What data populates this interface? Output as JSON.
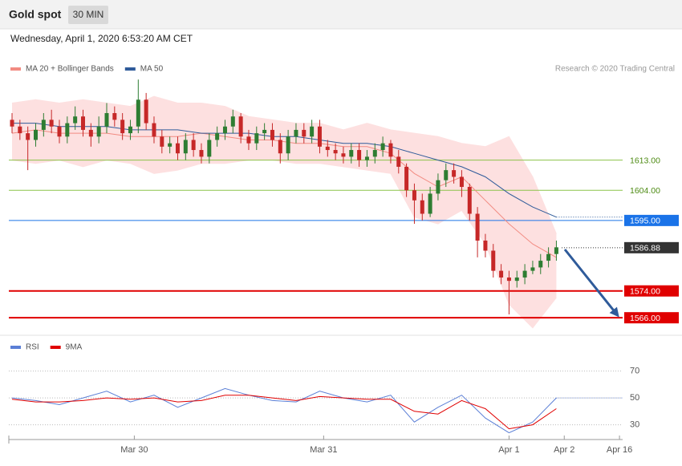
{
  "header": {
    "title": "Gold spot",
    "timeframe": "30 MIN",
    "timestamp": "Wednesday, April 1, 2020 6:53:20 AM CET"
  },
  "chart_data": [
    {
      "type": "candlestick",
      "credit": "Research © 2020 Trading Central",
      "xlim": [
        0,
        155
      ],
      "ylim": [
        1561.5,
        1638
      ],
      "up_color": "#2e7d32",
      "down_color": "#c62828",
      "candles": {
        "x": [
          0,
          2,
          4,
          6,
          8,
          10,
          12,
          14,
          16,
          18,
          20,
          22,
          24,
          26,
          28,
          30,
          32,
          34,
          36,
          38,
          40,
          42,
          44,
          46,
          48,
          50,
          52,
          54,
          56,
          58,
          60,
          62,
          64,
          66,
          68,
          70,
          72,
          74,
          76,
          78,
          80,
          82,
          84,
          86,
          88,
          90,
          92,
          94,
          96,
          98,
          100,
          102,
          104,
          106,
          108,
          110,
          112,
          114,
          116,
          118,
          120,
          122,
          124,
          126,
          128,
          130,
          132,
          134,
          136,
          138
        ],
        "open": [
          1625,
          1623,
          1621,
          1619,
          1622,
          1625,
          1623,
          1620,
          1624,
          1626,
          1622,
          1620,
          1623,
          1627,
          1625,
          1621,
          1623,
          1631,
          1624,
          1620,
          1617,
          1618,
          1615,
          1619,
          1616,
          1614,
          1619,
          1621,
          1623,
          1626,
          1620,
          1618,
          1621,
          1622,
          1619,
          1615,
          1620,
          1622,
          1620,
          1623,
          1617,
          1616,
          1615,
          1614,
          1616,
          1613,
          1614,
          1616,
          1618,
          1614,
          1611,
          1604,
          1601,
          1597,
          1603,
          1607,
          1610,
          1608,
          1605,
          1597,
          1589,
          1586,
          1580,
          1578,
          1577,
          1578,
          1580,
          1581,
          1583,
          1585
        ],
        "high": [
          1627,
          1625,
          1623,
          1624,
          1627,
          1628,
          1625,
          1626,
          1629,
          1628,
          1624,
          1626,
          1630,
          1629,
          1627,
          1625,
          1637,
          1633,
          1626,
          1622,
          1620,
          1620,
          1621,
          1621,
          1618,
          1621,
          1623,
          1625,
          1628,
          1627,
          1622,
          1623,
          1624,
          1624,
          1621,
          1622,
          1624,
          1624,
          1625,
          1625,
          1619,
          1618,
          1617,
          1618,
          1618,
          1616,
          1618,
          1620,
          1619,
          1616,
          1612,
          1606,
          1603,
          1605,
          1609,
          1612,
          1612,
          1610,
          1606,
          1599,
          1591,
          1588,
          1582,
          1580,
          1580,
          1582,
          1583,
          1585,
          1587,
          1589
        ],
        "low": [
          1621,
          1619,
          1610,
          1617,
          1620,
          1621,
          1618,
          1618,
          1622,
          1620,
          1617,
          1618,
          1621,
          1623,
          1619,
          1619,
          1621,
          1622,
          1618,
          1615,
          1615,
          1613,
          1613,
          1614,
          1612,
          1612,
          1617,
          1619,
          1621,
          1618,
          1616,
          1616,
          1619,
          1617,
          1612,
          1613,
          1618,
          1618,
          1618,
          1615,
          1614,
          1613,
          1612,
          1612,
          1611,
          1611,
          1612,
          1614,
          1612,
          1609,
          1602,
          1594,
          1595,
          1596,
          1601,
          1605,
          1606,
          1602,
          1595,
          1584,
          1584,
          1578,
          1576,
          1567,
          1575,
          1576,
          1579,
          1579,
          1581,
          1583
        ],
        "close": [
          1623,
          1621,
          1619,
          1622,
          1625,
          1623,
          1620,
          1624,
          1626,
          1622,
          1620,
          1623,
          1627,
          1625,
          1621,
          1623,
          1631,
          1624,
          1620,
          1617,
          1618,
          1615,
          1619,
          1616,
          1614,
          1619,
          1621,
          1623,
          1626,
          1620,
          1618,
          1621,
          1622,
          1619,
          1615,
          1620,
          1622,
          1620,
          1623,
          1617,
          1616,
          1615,
          1614,
          1616,
          1613,
          1614,
          1616,
          1618,
          1614,
          1611,
          1604,
          1601,
          1597,
          1603,
          1607,
          1610,
          1608,
          1605,
          1597,
          1589,
          1586,
          1580,
          1578,
          1577,
          1578,
          1580,
          1581,
          1583,
          1585,
          1587
        ]
      },
      "x": [
        0,
        6,
        12,
        18,
        24,
        30,
        36,
        42,
        48,
        54,
        60,
        66,
        72,
        78,
        84,
        90,
        96,
        102,
        108,
        114,
        120,
        126,
        132,
        138
      ],
      "series": [
        {
          "name": "MA 20 + Bollinger Bands",
          "color": "#f28b82",
          "band_color": "#fde0e0",
          "values": [
            1621,
            1622,
            1621,
            1621,
            1621,
            1620,
            1620,
            1620,
            1621,
            1620,
            1619,
            1619,
            1618,
            1618,
            1617,
            1617,
            1615,
            1609,
            1605,
            1608,
            1601,
            1594,
            1588,
            1584
          ],
          "upper": [
            1630,
            1631,
            1630,
            1631,
            1630,
            1629,
            1632,
            1630,
            1630,
            1629,
            1626,
            1625,
            1624,
            1624,
            1622,
            1624,
            1622,
            1621,
            1620,
            1618,
            1617,
            1620,
            1608,
            1591
          ],
          "lower": [
            1613,
            1612,
            1613,
            1611,
            1613,
            1612,
            1609,
            1610,
            1612,
            1612,
            1613,
            1613,
            1612,
            1612,
            1611,
            1610,
            1609,
            1596,
            1594,
            1598,
            1588,
            1570,
            1563,
            1572
          ]
        },
        {
          "name": "MA 50",
          "color": "#2f5b9a",
          "values": [
            1624,
            1624,
            1623,
            1623,
            1623,
            1622,
            1622,
            1622,
            1621,
            1621,
            1621,
            1620,
            1620,
            1619,
            1618,
            1618,
            1617,
            1615,
            1613,
            1611,
            1608,
            1603,
            1599,
            1596
          ]
        }
      ],
      "levels": [
        {
          "value": 1613,
          "label": "1613.00",
          "color": "#8bc34a",
          "text_color": "#4c8a12",
          "boxed": false,
          "width": 1
        },
        {
          "value": 1604,
          "label": "1604.00",
          "color": "#8bc34a",
          "text_color": "#4c8a12",
          "boxed": false,
          "width": 1
        },
        {
          "value": 1595,
          "label": "1595.00",
          "color": "#1a73e8",
          "text_color": "#ffffff",
          "boxed": true,
          "width": 1
        },
        {
          "value": 1586.88,
          "label": "1586.88",
          "color": "#333333",
          "text_color": "#ffffff",
          "boxed": true,
          "width": 1,
          "dotted": true
        },
        {
          "value": 1574,
          "label": "1574.00",
          "color": "#e00000",
          "text_color": "#ffffff",
          "boxed": true,
          "width": 2
        },
        {
          "value": 1566,
          "label": "1566.00",
          "color": "#e00000",
          "text_color": "#ffffff",
          "boxed": true,
          "width": 2
        }
      ]
    },
    {
      "type": "line",
      "xlim": [
        0,
        155
      ],
      "ylim": [
        19,
        80.5
      ],
      "yticks": [
        30,
        50,
        70
      ],
      "xticks": [
        {
          "value": 31,
          "label": "Mar 30"
        },
        {
          "value": 79,
          "label": "Mar 31"
        },
        {
          "value": 126,
          "label": "Apr 1"
        },
        {
          "value": 140,
          "label": "Apr 2"
        },
        {
          "value": 154,
          "label": "Apr 16"
        }
      ],
      "x": [
        0,
        6,
        12,
        18,
        24,
        30,
        36,
        42,
        48,
        54,
        60,
        66,
        72,
        78,
        84,
        90,
        96,
        102,
        108,
        114,
        120,
        126,
        132,
        138
      ],
      "series": [
        {
          "name": "RSI",
          "color": "#5b7fd6",
          "values": [
            50,
            48,
            45,
            50,
            55,
            47,
            52,
            43,
            50,
            57,
            52,
            48,
            47,
            55,
            50,
            47,
            52,
            32,
            43,
            52,
            35,
            24,
            32,
            50
          ]
        },
        {
          "name": "9MA",
          "color": "#e00000",
          "values": [
            49,
            47,
            47,
            48,
            50,
            49,
            50,
            47,
            48,
            52,
            52,
            50,
            48,
            51,
            50,
            49,
            49,
            40,
            38,
            48,
            42,
            27,
            30,
            42
          ]
        }
      ]
    }
  ]
}
